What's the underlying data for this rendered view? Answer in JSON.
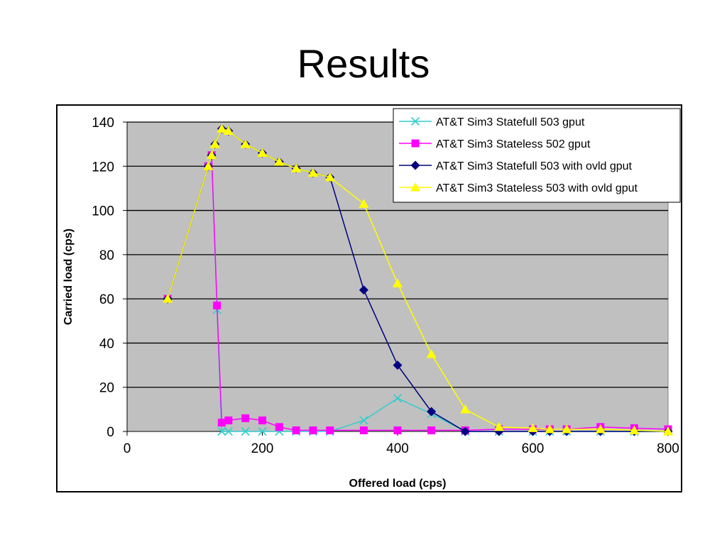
{
  "slide": {
    "title": "Results"
  },
  "chart_data": {
    "type": "line",
    "title": "",
    "xlabel": "Offered load (cps)",
    "ylabel": "Carried load (cps)",
    "xlim": [
      0,
      800
    ],
    "ylim": [
      0,
      140
    ],
    "x_ticks": [
      0,
      200,
      400,
      600,
      800
    ],
    "y_ticks": [
      0,
      20,
      40,
      60,
      80,
      100,
      120,
      140
    ],
    "grid": "horizontal",
    "plot_background": "#c0c0c0",
    "legend_position": "top-right",
    "series": [
      {
        "name": "AT&T Sim3 Statefull 503 gput",
        "color": "#33cccc",
        "marker": "x",
        "points": [
          [
            60,
            60
          ],
          [
            120,
            120
          ],
          [
            125,
            125
          ],
          [
            133,
            55
          ],
          [
            140,
            0
          ],
          [
            150,
            0
          ],
          [
            175,
            0
          ],
          [
            200,
            0
          ],
          [
            225,
            0
          ],
          [
            250,
            0
          ],
          [
            275,
            0
          ],
          [
            300,
            0
          ],
          [
            350,
            5
          ],
          [
            400,
            15
          ],
          [
            450,
            8
          ],
          [
            500,
            0
          ],
          [
            550,
            0
          ],
          [
            600,
            0
          ],
          [
            625,
            0
          ],
          [
            650,
            0
          ],
          [
            700,
            0
          ],
          [
            750,
            0
          ],
          [
            800,
            0
          ]
        ]
      },
      {
        "name": "AT&T Sim3 Stateless 502 gput",
        "color": "#ff00ff",
        "marker": "square",
        "points": [
          [
            60,
            60
          ],
          [
            120,
            120
          ],
          [
            125,
            125
          ],
          [
            133,
            57
          ],
          [
            140,
            4
          ],
          [
            150,
            5
          ],
          [
            175,
            6
          ],
          [
            200,
            5
          ],
          [
            225,
            2
          ],
          [
            250,
            0.5
          ],
          [
            275,
            0.5
          ],
          [
            300,
            0.5
          ],
          [
            350,
            0.5
          ],
          [
            400,
            0.5
          ],
          [
            450,
            0.5
          ],
          [
            500,
            0.5
          ],
          [
            550,
            1
          ],
          [
            600,
            1
          ],
          [
            625,
            1
          ],
          [
            650,
            1
          ],
          [
            700,
            2
          ],
          [
            750,
            1.5
          ],
          [
            800,
            1
          ]
        ]
      },
      {
        "name": "AT&T Sim3 Statefull 503 with ovld gput",
        "color": "#000080",
        "marker": "diamond",
        "points": [
          [
            60,
            60
          ],
          [
            120,
            120
          ],
          [
            125,
            125
          ],
          [
            130,
            130
          ],
          [
            140,
            137
          ],
          [
            150,
            136
          ],
          [
            175,
            130
          ],
          [
            200,
            126
          ],
          [
            225,
            122
          ],
          [
            250,
            119
          ],
          [
            275,
            117
          ],
          [
            300,
            115
          ],
          [
            350,
            64
          ],
          [
            400,
            30
          ],
          [
            450,
            9
          ],
          [
            500,
            0
          ],
          [
            550,
            0
          ],
          [
            600,
            0
          ],
          [
            625,
            0
          ],
          [
            650,
            0
          ],
          [
            700,
            0
          ],
          [
            750,
            0
          ],
          [
            800,
            0
          ]
        ]
      },
      {
        "name": "AT&T Sim3 Stateless 503 with ovld gput",
        "color": "#ffff00",
        "marker": "triangle",
        "points": [
          [
            60,
            60
          ],
          [
            120,
            120
          ],
          [
            125,
            125
          ],
          [
            130,
            130
          ],
          [
            140,
            137
          ],
          [
            150,
            136
          ],
          [
            175,
            130
          ],
          [
            200,
            126
          ],
          [
            225,
            122
          ],
          [
            250,
            119
          ],
          [
            275,
            117
          ],
          [
            300,
            115
          ],
          [
            350,
            103
          ],
          [
            400,
            67
          ],
          [
            450,
            35
          ],
          [
            500,
            10
          ],
          [
            550,
            2
          ],
          [
            600,
            1.5
          ],
          [
            625,
            1
          ],
          [
            650,
            1
          ],
          [
            700,
            1
          ],
          [
            750,
            0.5
          ],
          [
            800,
            0
          ]
        ]
      }
    ]
  }
}
